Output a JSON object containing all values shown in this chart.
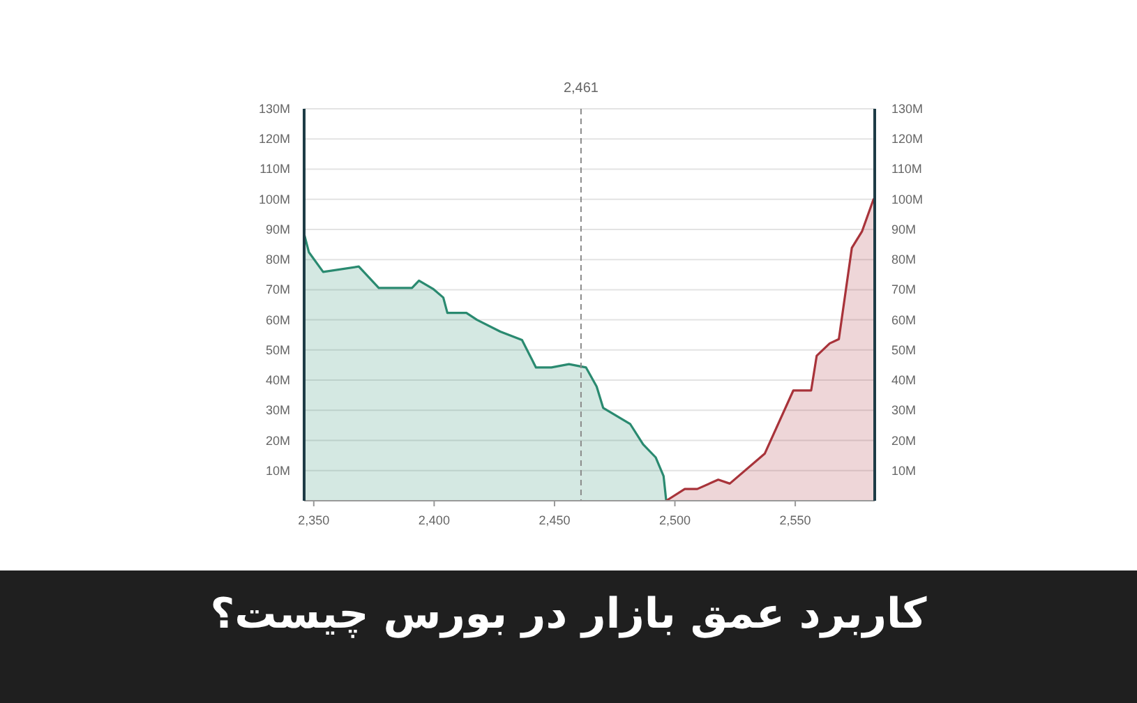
{
  "chart_data": {
    "type": "area",
    "title": "کاربرد عمق بازار در بورس چیست؟",
    "xlim": [
      2346,
      2583
    ],
    "xticks": [
      {
        "value": 2350,
        "label": "2,350"
      },
      {
        "value": 2400,
        "label": "2,400"
      },
      {
        "value": 2450,
        "label": "2,450"
      },
      {
        "value": 2500,
        "label": "2,500"
      },
      {
        "value": 2550,
        "label": "2,550"
      }
    ],
    "ylim": [
      0,
      130
    ],
    "yticks": [
      {
        "value": 10,
        "label": "10M"
      },
      {
        "value": 20,
        "label": "20M"
      },
      {
        "value": 30,
        "label": "30M"
      },
      {
        "value": 40,
        "label": "40M"
      },
      {
        "value": 50,
        "label": "50M"
      },
      {
        "value": 60,
        "label": "60M"
      },
      {
        "value": 70,
        "label": "70M"
      },
      {
        "value": 80,
        "label": "80M"
      },
      {
        "value": 90,
        "label": "90M"
      },
      {
        "value": 100,
        "label": "100M"
      },
      {
        "value": 110,
        "label": "110M"
      },
      {
        "value": 120,
        "label": "120M"
      },
      {
        "value": 130,
        "label": "130M"
      }
    ],
    "y2lim": [
      0,
      130
    ],
    "y2ticks": [
      {
        "value": 10,
        "label": "10M"
      },
      {
        "value": 20,
        "label": "20M"
      },
      {
        "value": 30,
        "label": "30M"
      },
      {
        "value": 40,
        "label": "40M"
      },
      {
        "value": 50,
        "label": "50M"
      },
      {
        "value": 60,
        "label": "60M"
      },
      {
        "value": 70,
        "label": "70M"
      },
      {
        "value": 80,
        "label": "80M"
      },
      {
        "value": 90,
        "label": "90M"
      },
      {
        "value": 100,
        "label": "100M"
      },
      {
        "value": 110,
        "label": "110M"
      },
      {
        "value": 120,
        "label": "120M"
      },
      {
        "value": 130,
        "label": "130M"
      }
    ],
    "grid": "y",
    "ref_lines": [
      {
        "axis": "x",
        "value": 2461,
        "label": "2,461",
        "color": "#8a8a8a",
        "line_style": "dashed"
      }
    ],
    "series": [
      {
        "color": "#2a8a70",
        "x": [
          2346,
          2348,
          2353.9,
          2368.7,
          2377,
          2390.8,
          2393.7,
          2399.5,
          2403.8,
          2405.5,
          2413.4,
          2417.8,
          2427.5,
          2436.5,
          2442.3,
          2448.7,
          2456,
          2463.1,
          2467.5,
          2470.2,
          2481.4,
          2486.8,
          2492,
          2495.3,
          2496.4
        ],
        "values": [
          88.5,
          82.4,
          75.9,
          77.7,
          70.6,
          70.6,
          73.0,
          70.3,
          67.4,
          62.3,
          62.3,
          60.0,
          56.1,
          53.3,
          44.2,
          44.2,
          45.3,
          44.2,
          37.9,
          30.8,
          25.5,
          18.7,
          14.4,
          8.2,
          0
        ]
      },
      {
        "color": "#a8333a",
        "x": [
          2496.4,
          2504.1,
          2509.3,
          2518,
          2522.8,
          2537.3,
          2549.2,
          2556.6,
          2558.9,
          2564.3,
          2568.1,
          2573.5,
          2577.7,
          2582.6
        ],
        "values": [
          0,
          3.9,
          3.9,
          7.0,
          5.7,
          15.6,
          36.6,
          36.6,
          48.1,
          52.2,
          53.6,
          83.9,
          89.3,
          100.2
        ]
      }
    ]
  }
}
